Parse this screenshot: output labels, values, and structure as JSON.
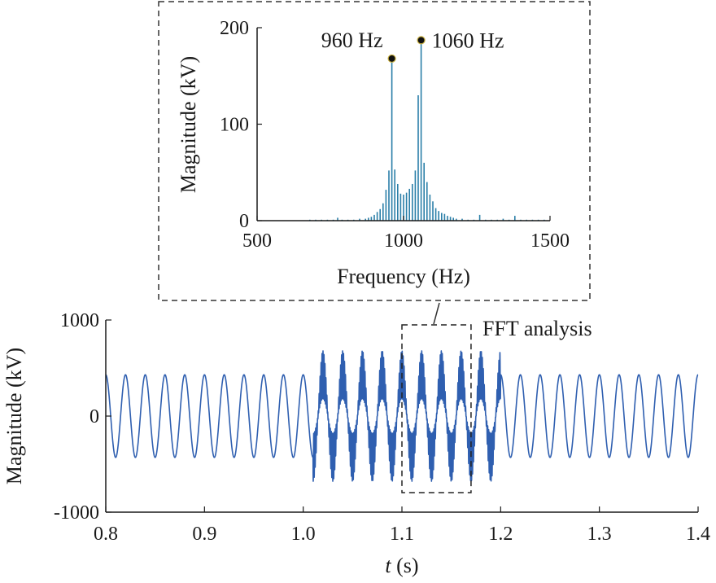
{
  "chart_data": [
    {
      "id": "spectrum",
      "type": "bar",
      "xlabel": "Frequency (Hz)",
      "ylabel": "Magnitude (kV)",
      "xlim": [
        500,
        1500
      ],
      "ylim": [
        0,
        200
      ],
      "xticks": [
        500,
        1000,
        1500
      ],
      "yticks": [
        0,
        100,
        200
      ],
      "colors": {
        "bars": "#2a7fa8",
        "marker": "#111111",
        "marker_edge": "#c8b040"
      },
      "x": [
        680,
        700,
        720,
        740,
        760,
        775,
        790,
        810,
        830,
        850,
        870,
        880,
        890,
        900,
        910,
        920,
        930,
        940,
        950,
        960,
        970,
        980,
        990,
        1000,
        1010,
        1020,
        1030,
        1040,
        1050,
        1060,
        1070,
        1080,
        1090,
        1100,
        1110,
        1120,
        1130,
        1140,
        1150,
        1160,
        1170,
        1180,
        1200,
        1220,
        1240,
        1260,
        1280,
        1300,
        1320,
        1340,
        1360,
        1380,
        1400,
        1420,
        1440,
        1460,
        1480
      ],
      "values": [
        1,
        1,
        1,
        1,
        1,
        3,
        1,
        1,
        1,
        2,
        2,
        3,
        4,
        6,
        9,
        12,
        18,
        32,
        52,
        165,
        53,
        38,
        28,
        27,
        29,
        33,
        38,
        52,
        130,
        183,
        60,
        40,
        27,
        20,
        13,
        10,
        8,
        7,
        5,
        4,
        3,
        2,
        2,
        1,
        1,
        6,
        1,
        1,
        1,
        2,
        1,
        5,
        1,
        1,
        1,
        1,
        1
      ],
      "annotations": [
        {
          "text": "960 Hz",
          "x": 960,
          "y": 168
        },
        {
          "text": "1060 Hz",
          "x": 1060,
          "y": 187
        }
      ]
    },
    {
      "id": "waveform",
      "type": "line",
      "xlabel_italic": "t",
      "xlabel_rest": " (s)",
      "ylabel": "Magnitude (kV)",
      "xlim": [
        0.8,
        1.4
      ],
      "ylim": [
        -1000,
        1000
      ],
      "xticks": [
        "0.8",
        "0.9",
        "1.0",
        "1.1",
        "1.2",
        "1.3",
        "1.4"
      ],
      "yticks": [
        "-1000",
        "0",
        "1000"
      ],
      "color": "#2f5fb0",
      "series": [
        {
          "segments": [
            {
              "t_start": 0.8,
              "t_end": 1.01,
              "frequency_hz": 50,
              "amplitude_kv": 430
            },
            {
              "t_start": 1.01,
              "t_end": 1.2,
              "frequency_hz": 50,
              "amplitude_kv": 430,
              "superposed": [
                {
                  "frequency_hz": 960,
                  "amplitude_kv": 120
                },
                {
                  "frequency_hz": 1060,
                  "amplitude_kv": 130
                }
              ]
            },
            {
              "t_start": 1.2,
              "t_end": 1.4,
              "frequency_hz": 50,
              "amplitude_kv": 430
            }
          ]
        }
      ],
      "annotation": {
        "text": "FFT analysis",
        "window": [
          1.1,
          1.17
        ]
      }
    }
  ]
}
